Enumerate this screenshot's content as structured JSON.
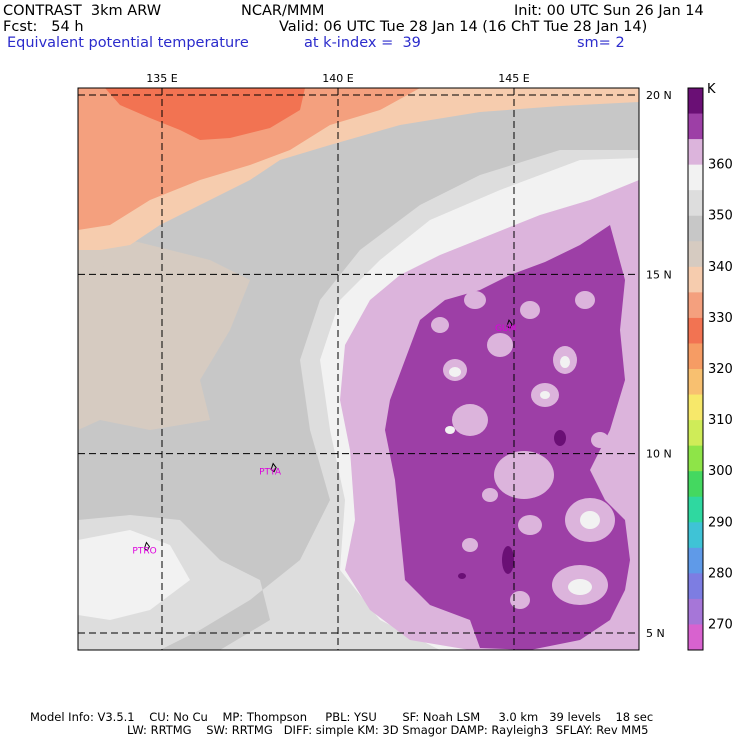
{
  "header": {
    "model": "CONTRAST  3km ARW",
    "org": "NCAR/MMM",
    "init": "Init: 00 UTC Sun 26 Jan 14",
    "fcst": "Fcst:   54 h",
    "valid": "Valid: 06 UTC Tue 28 Jan 14 (16 ChT Tue 28 Jan 14)",
    "field": "Equivalent potential temperature",
    "level": "at k-index =  39",
    "smooth": "sm= 2"
  },
  "chart_data": {
    "type": "heatmap",
    "title": "Equivalent potential temperature",
    "units": "K",
    "grid": true,
    "legend_position": "right",
    "x_axis": {
      "ticks": [
        135,
        140,
        145
      ],
      "tick_labels": [
        "135 E",
        "140 E",
        "145 E"
      ]
    },
    "y_axis": {
      "ticks": [
        20,
        15,
        10,
        5
      ],
      "tick_labels": [
        "20 N",
        "15 N",
        "10 N",
        "5 N"
      ]
    },
    "colorbar": {
      "levels": [
        270,
        275,
        280,
        285,
        290,
        295,
        300,
        305,
        310,
        315,
        320,
        325,
        330,
        335,
        340,
        345,
        350,
        355,
        360,
        365,
        370
      ],
      "tick_labels": [
        "270",
        "280",
        "290",
        "300",
        "310",
        "320",
        "330",
        "340",
        "350",
        "360"
      ],
      "colors": [
        "#d862cf",
        "#a676d8",
        "#7d7de2",
        "#5f9ae8",
        "#3fc3d6",
        "#2fd8a0",
        "#44d860",
        "#8ee448",
        "#cfec58",
        "#f7e86a",
        "#f8c070",
        "#f69c64",
        "#f27352",
        "#f4a07e",
        "#f6ccae",
        "#d6cbc1",
        "#c7c7c7",
        "#dddddd",
        "#f2f2f2",
        "#dcb4dc",
        "#9d3fa6",
        "#6a0f75"
      ]
    },
    "stations": [
      {
        "id": "GUM",
        "lon": 144.8,
        "lat": 13.5
      },
      {
        "id": "PTYA",
        "lon": 138.1,
        "lat": 9.5
      },
      {
        "id": "PTRO",
        "lon": 134.5,
        "lat": 7.3
      }
    ]
  },
  "footer": {
    "line1": "Model Info: V3.5.1    CU: No Cu    MP: Thompson     PBL: YSU       SF: Noah LSM     3.0 km   39 levels    18 sec",
    "line2": "LW: RRTMG    SW: RRTMG   DIFF: simple KM: 3D Smagor DAMP: Rayleigh3  SFLAY: Rev MM5"
  }
}
